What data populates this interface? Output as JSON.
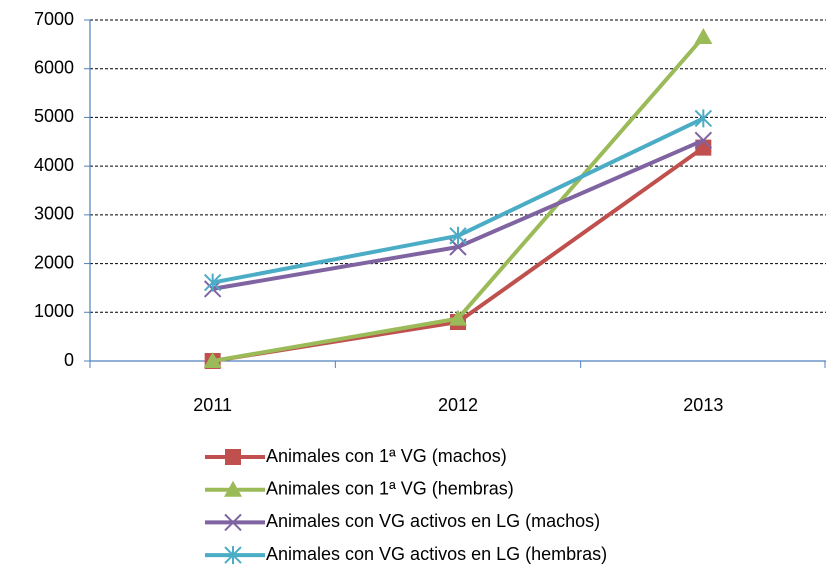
{
  "chart_data": {
    "type": "line",
    "categories": [
      "2011",
      "2012",
      "2013"
    ],
    "series": [
      {
        "name": "Animales con 1ª VG (machos)",
        "color": "#c0504d",
        "marker": "square",
        "values": [
          0,
          800,
          4380
        ]
      },
      {
        "name": "Animales con 1ª VG (hembras)",
        "color": "#9bbb59",
        "marker": "triangle",
        "values": [
          0,
          870,
          6650
        ]
      },
      {
        "name": "Animales con VG activos en LG (machos)",
        "color": "#8064a2",
        "marker": "x",
        "values": [
          1480,
          2340,
          4530
        ]
      },
      {
        "name": "Animales con VG activos en LG (hembras)",
        "color": "#4bacc6",
        "marker": "star",
        "values": [
          1610,
          2570,
          4980
        ]
      }
    ],
    "ylim": [
      0,
      7000
    ],
    "yticks": [
      0,
      1000,
      2000,
      3000,
      4000,
      5000,
      6000,
      7000
    ],
    "grid": true,
    "legend": "bottom"
  }
}
